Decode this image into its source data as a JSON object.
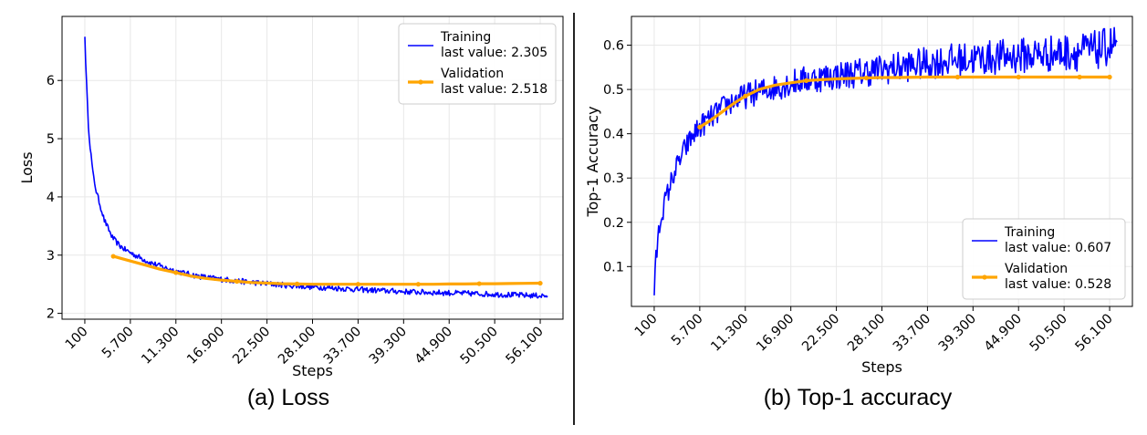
{
  "captions": {
    "a": "(a) Loss",
    "b": "(b) Top-1 accuracy"
  },
  "colors": {
    "training": "#0000ff",
    "validation": "#ffa500"
  },
  "chart_data": [
    {
      "type": "line",
      "xlabel": "Steps",
      "ylabel": "Loss",
      "xticks": [
        "100",
        "5.700",
        "11.300",
        "16.900",
        "22.500",
        "28.100",
        "33.700",
        "39.300",
        "44.900",
        "50.500",
        "56.100"
      ],
      "xlim": [
        -2700,
        58900
      ],
      "ylim": [
        1.9,
        7.1
      ],
      "yticks": [
        2,
        3,
        4,
        5,
        6
      ],
      "grid": true,
      "legend_position": "top-right",
      "legend": [
        {
          "key": "training",
          "name": "Training",
          "sub": "last value: 2.305"
        },
        {
          "key": "validation",
          "name": "Validation",
          "sub": "last value: 2.518"
        }
      ],
      "series": [
        {
          "key": "training",
          "x": [
            100,
            300,
            500,
            800,
            1100,
            1500,
            2000,
            2500,
            3000,
            3500,
            4000,
            4500,
            5000,
            6000,
            7000,
            8000,
            10000,
            12000,
            14000,
            16000,
            20000,
            25000,
            30000,
            35000,
            40000,
            45000,
            50000,
            54000,
            57000
          ],
          "y": [
            6.75,
            6.0,
            5.3,
            4.8,
            4.4,
            4.1,
            3.85,
            3.6,
            3.45,
            3.3,
            3.22,
            3.15,
            3.1,
            3.02,
            2.95,
            2.88,
            2.78,
            2.7,
            2.64,
            2.6,
            2.54,
            2.48,
            2.44,
            2.4,
            2.37,
            2.35,
            2.33,
            2.31,
            2.3
          ],
          "noise": 0.06
        },
        {
          "key": "validation",
          "x": [
            3600,
            5700,
            7500,
            9300,
            11300,
            13200,
            15000,
            16900,
            18800,
            20600,
            22500,
            24300,
            26200,
            28100,
            30000,
            31800,
            33700,
            35600,
            37400,
            39300,
            41100,
            43000,
            44900,
            46800,
            48600,
            50500,
            52400,
            54200,
            56100
          ],
          "y": [
            2.98,
            2.9,
            2.83,
            2.76,
            2.7,
            2.64,
            2.6,
            2.57,
            2.55,
            2.53,
            2.52,
            2.51,
            2.505,
            2.5,
            2.5,
            2.5,
            2.5,
            2.5,
            2.5,
            2.5,
            2.5,
            2.5,
            2.505,
            2.505,
            2.51,
            2.51,
            2.512,
            2.515,
            2.518
          ],
          "marker_every": 4
        }
      ]
    },
    {
      "type": "line",
      "xlabel": "Steps",
      "ylabel": "Top-1 Accuracy",
      "xticks": [
        "100",
        "5.700",
        "11.300",
        "16.900",
        "22.500",
        "28.100",
        "33.700",
        "39.300",
        "44.900",
        "50.500",
        "56.100"
      ],
      "xlim": [
        -2700,
        58900
      ],
      "ylim": [
        0.01,
        0.665
      ],
      "yticks": [
        0.1,
        0.2,
        0.3,
        0.4,
        0.5,
        0.6
      ],
      "grid": true,
      "legend_position": "bottom-right",
      "legend": [
        {
          "key": "training",
          "name": "Training",
          "sub": "last value: 0.607"
        },
        {
          "key": "validation",
          "name": "Validation",
          "sub": "last value: 0.528"
        }
      ],
      "series": [
        {
          "key": "training",
          "x": [
            100,
            300,
            600,
            1000,
            1500,
            2000,
            2500,
            3000,
            3500,
            4000,
            4500,
            5000,
            6000,
            7000,
            8000,
            9000,
            10000,
            12000,
            14000,
            16000,
            18000,
            20000,
            24000,
            28000,
            32000,
            36000,
            40000,
            44000,
            48000,
            52000,
            55000,
            57000
          ],
          "y": [
            0.035,
            0.11,
            0.17,
            0.22,
            0.25,
            0.28,
            0.31,
            0.33,
            0.35,
            0.37,
            0.385,
            0.4,
            0.42,
            0.435,
            0.45,
            0.465,
            0.475,
            0.49,
            0.5,
            0.51,
            0.52,
            0.525,
            0.535,
            0.545,
            0.555,
            0.565,
            0.57,
            0.575,
            0.58,
            0.585,
            0.59,
            0.607
          ],
          "noise": 0.025
        },
        {
          "key": "validation",
          "x": [
            5700,
            7000,
            8500,
            10000,
            11300,
            13000,
            15000,
            16900,
            18800,
            20600,
            22500,
            24300,
            26200,
            28100,
            30000,
            33700,
            37400,
            39300,
            41100,
            43000,
            44900,
            46800,
            48600,
            50500,
            52400,
            54200,
            56100
          ],
          "y": [
            0.415,
            0.43,
            0.45,
            0.47,
            0.485,
            0.5,
            0.51,
            0.515,
            0.52,
            0.522,
            0.524,
            0.525,
            0.526,
            0.527,
            0.527,
            0.528,
            0.528,
            0.528,
            0.528,
            0.528,
            0.528,
            0.528,
            0.528,
            0.528,
            0.528,
            0.528,
            0.528
          ],
          "marker_every": 4
        }
      ]
    }
  ]
}
